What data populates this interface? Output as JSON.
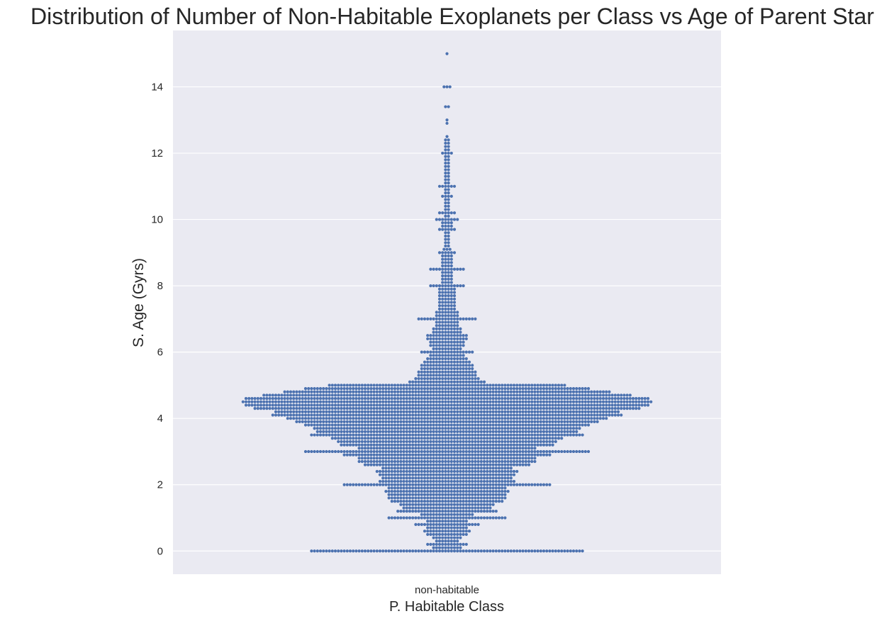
{
  "chart_data": {
    "type": "scatter",
    "subtype": "swarm",
    "title": "Distribution of Number of Non-Habitable Exoplanets per Class vs Age of Parent Star",
    "xlabel": "P. Habitable Class",
    "ylabel": "S. Age (Gyrs)",
    "categories": [
      "non-habitable"
    ],
    "ylim": [
      -0.7,
      15.7
    ],
    "yticks": [
      0,
      2,
      4,
      6,
      8,
      10,
      12,
      14
    ],
    "grid": true,
    "legend": "none",
    "colors": {
      "points": "#4c72b0",
      "plot_background": "#eaeaf2",
      "grid": "#ffffff"
    },
    "series": [
      {
        "category": "non-habitable",
        "age_bins_gyr": [
          0,
          0.1,
          0.2,
          0.3,
          0.4,
          0.5,
          0.6,
          0.7,
          0.8,
          0.9,
          1,
          1.1,
          1.2,
          1.3,
          1.4,
          1.5,
          1.6,
          1.7,
          1.8,
          1.9,
          2,
          2.1,
          2.2,
          2.3,
          2.4,
          2.5,
          2.6,
          2.7,
          2.8,
          2.9,
          3,
          3.1,
          3.2,
          3.3,
          3.4,
          3.5,
          3.6,
          3.7,
          3.8,
          3.9,
          4,
          4.1,
          4.2,
          4.3,
          4.4,
          4.5,
          4.6,
          4.7,
          4.8,
          4.9,
          5,
          5.1,
          5.2,
          5.3,
          5.4,
          5.5,
          5.6,
          5.7,
          5.8,
          5.9,
          6,
          6.1,
          6.2,
          6.3,
          6.4,
          6.5,
          6.6,
          6.7,
          6.8,
          6.9,
          7,
          7.1,
          7.2,
          7.3,
          7.4,
          7.5,
          7.6,
          7.7,
          7.8,
          7.9,
          8,
          8.1,
          8.2,
          8.3,
          8.4,
          8.5,
          8.6,
          8.7,
          8.8,
          8.9,
          9,
          9.1,
          9.2,
          9.3,
          9.4,
          9.5,
          9.6,
          9.7,
          9.8,
          9.9,
          10,
          10.1,
          10.2,
          10.3,
          10.4,
          10.5,
          10.6,
          10.7,
          10.8,
          10.9,
          11,
          11.1,
          11.2,
          11.3,
          11.4,
          11.5,
          11.6,
          11.7,
          11.8,
          11.9,
          12,
          12.1,
          12.2,
          12.3,
          12.4,
          12.5,
          12.6,
          12.7,
          12.8,
          12.9,
          13,
          13.1,
          13.2,
          13.3,
          13.4,
          13.5,
          13.6,
          13.7,
          13.8,
          13.9,
          14,
          14.1,
          14.2,
          14.3,
          14.4,
          14.5,
          14.6,
          14.7,
          14.8,
          14.9,
          15
        ],
        "counts_per_bin": [
          92,
          10,
          14,
          8,
          10,
          14,
          16,
          14,
          22,
          14,
          40,
          18,
          34,
          30,
          32,
          38,
          40,
          40,
          42,
          40,
          70,
          46,
          44,
          46,
          48,
          44,
          56,
          60,
          60,
          70,
          96,
          60,
          72,
          74,
          78,
          92,
          88,
          90,
          96,
          102,
          108,
          118,
          116,
          130,
          136,
          138,
          136,
          124,
          110,
          96,
          80,
          26,
          22,
          20,
          20,
          18,
          18,
          16,
          14,
          12,
          18,
          10,
          12,
          12,
          14,
          14,
          10,
          10,
          8,
          8,
          20,
          8,
          8,
          6,
          6,
          6,
          6,
          6,
          6,
          6,
          12,
          4,
          4,
          4,
          4,
          12,
          4,
          4,
          4,
          4,
          6,
          3,
          2,
          2,
          2,
          2,
          2,
          6,
          4,
          4,
          8,
          2,
          6,
          2,
          2,
          2,
          2,
          4,
          2,
          2,
          6,
          2,
          2,
          2,
          2,
          2,
          2,
          2,
          2,
          2,
          4,
          2,
          2,
          2,
          2,
          1,
          0,
          0,
          0,
          1,
          1,
          0,
          0,
          0,
          2,
          0,
          0,
          0,
          0,
          0,
          3,
          0,
          0,
          0,
          0,
          0,
          0,
          0,
          0,
          0,
          1
        ]
      }
    ]
  }
}
